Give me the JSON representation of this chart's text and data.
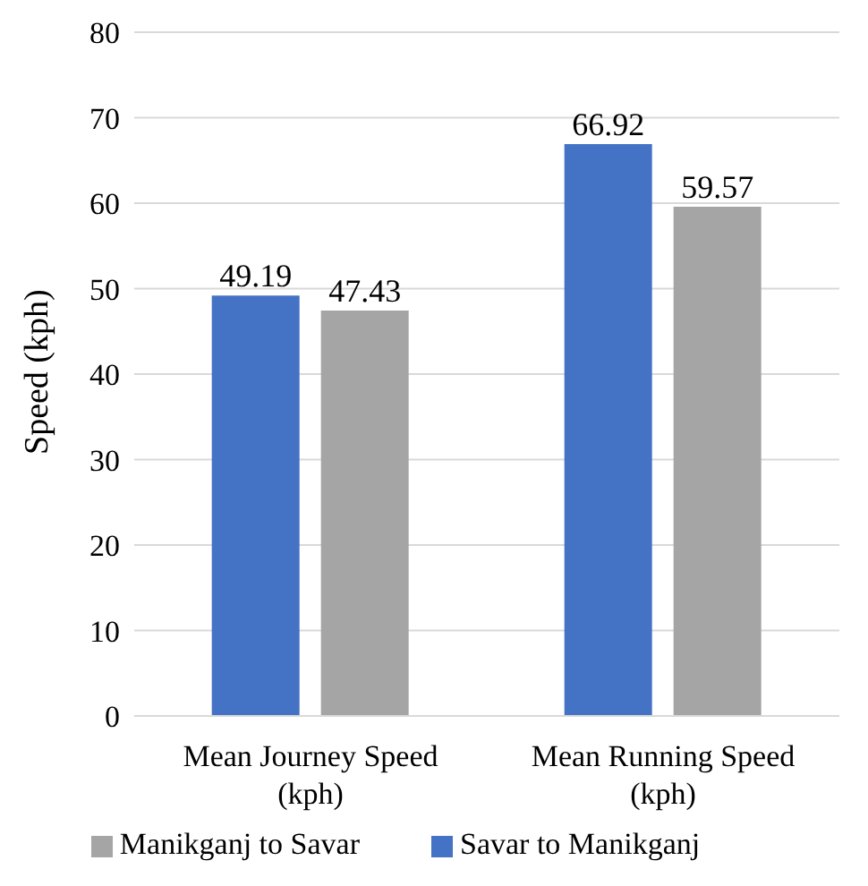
{
  "chart_data": {
    "type": "bar",
    "ylabel": "Speed (kph)",
    "categories": [
      "Mean Journey Speed (kph)",
      "Mean Running Speed (kph)"
    ],
    "series": [
      {
        "name": "Savar to Manikganj",
        "color": "#4472c4",
        "values": [
          49.19,
          66.92
        ]
      },
      {
        "name": "Manikganj to Savar",
        "color": "#a5a5a5",
        "values": [
          47.43,
          59.57
        ]
      }
    ],
    "ylim": [
      0,
      80
    ],
    "yticks": [
      0,
      10,
      20,
      30,
      40,
      50,
      60,
      70,
      80
    ],
    "grid": "y",
    "legend": "bottom",
    "data_labels": true
  }
}
